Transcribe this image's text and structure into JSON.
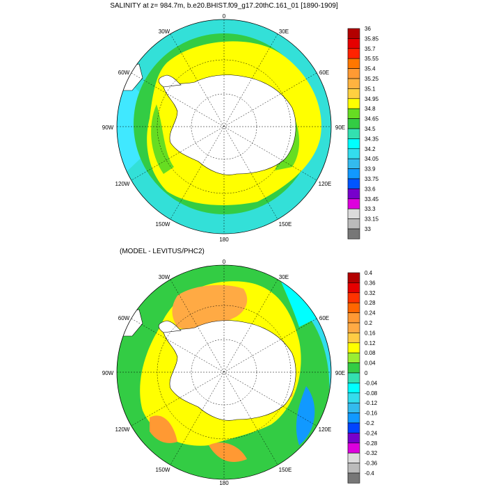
{
  "top": {
    "title": "SALINITY at z= 984.7m, b.e20.BHIST.f09_g17.20thC.161_01 [1890-1909]",
    "lon_labels": [
      "0",
      "30E",
      "60E",
      "90E",
      "120E",
      "150E",
      "180",
      "150W",
      "120W",
      "90W",
      "60W",
      "30W"
    ],
    "colorbar": {
      "labels": [
        "36",
        "35.85",
        "35.7",
        "35.55",
        "35.4",
        "35.25",
        "35.1",
        "34.95",
        "34.8",
        "34.65",
        "34.5",
        "34.35",
        "34.2",
        "34.05",
        "33.9",
        "33.75",
        "33.6",
        "33.45",
        "33.3",
        "33.15",
        "33"
      ],
      "colors": [
        "#b30000",
        "#e60000",
        "#ff2200",
        "#ff7700",
        "#ff9a33",
        "#ffb340",
        "#ffd040",
        "#ffff00",
        "#66dd22",
        "#33cc44",
        "#33e0b0",
        "#00ffff",
        "#33ddee",
        "#33bbee",
        "#1199ff",
        "#0055ff",
        "#7700cc",
        "#dd00dd",
        "#dcdcdc",
        "#bbbbbb",
        "#777777"
      ]
    }
  },
  "bottom": {
    "title": "(MODEL - LEVITUS/PHC2)",
    "lon_labels": [
      "0",
      "30E",
      "60E",
      "90E",
      "120E",
      "150E",
      "180",
      "150W",
      "120W",
      "90W",
      "60W",
      "30W"
    ],
    "colorbar": {
      "labels": [
        "0.4",
        "0.36",
        "0.32",
        "0.28",
        "0.24",
        "0.2",
        "0.16",
        "0.12",
        "0.08",
        "0.04",
        "0",
        "-0.04",
        "-0.08",
        "-0.12",
        "-0.16",
        "-0.2",
        "-0.24",
        "-0.28",
        "-0.32",
        "-0.36",
        "-0.4"
      ],
      "colors": [
        "#b30000",
        "#e60000",
        "#ff3300",
        "#ff6600",
        "#ff9933",
        "#ffaa44",
        "#ffcc44",
        "#ffff00",
        "#99ee33",
        "#33cc44",
        "#33e0b0",
        "#00ffff",
        "#33ddee",
        "#33bbee",
        "#1199ff",
        "#0044ff",
        "#7700cc",
        "#dd00dd",
        "#dcdcdc",
        "#bbbbbb",
        "#777777"
      ]
    }
  }
}
